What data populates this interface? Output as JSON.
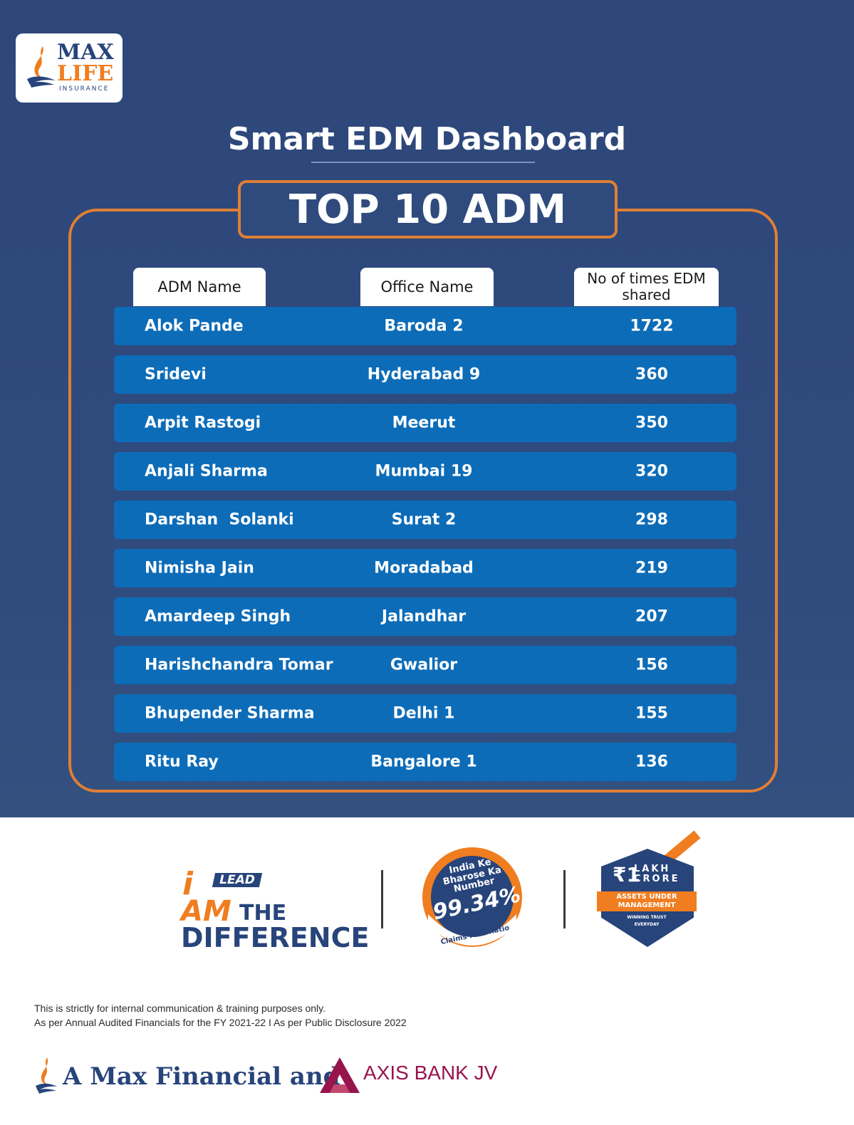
{
  "logo": {
    "line1": "MAX",
    "line2": "LIFE",
    "line3": "INSURANCE"
  },
  "title": "Smart EDM Dashboard",
  "badge": "TOP 10 ADM",
  "table": {
    "headers": [
      "ADM Name",
      "Office Name",
      "No of times EDM shared"
    ],
    "rows": [
      {
        "name": "Alok Pande",
        "office": "Baroda 2",
        "count": "1722"
      },
      {
        "name": "Sridevi",
        "office": "Hyderabad 9",
        "count": "360"
      },
      {
        "name": "Arpit Rastogi",
        "office": "Meerut",
        "count": "350"
      },
      {
        "name": "Anjali Sharma",
        "office": "Mumbai 19",
        "count": "320"
      },
      {
        "name": "Darshan  Solanki",
        "office": "Surat 2",
        "count": "298"
      },
      {
        "name": "Nimisha Jain",
        "office": "Moradabad",
        "count": "219"
      },
      {
        "name": "Amardeep Singh",
        "office": "Jalandhar",
        "count": "207"
      },
      {
        "name": "Harishchandra Tomar",
        "office": "Gwalior",
        "count": "156"
      },
      {
        "name": "Bhupender Sharma",
        "office": "Delhi 1",
        "count": "155"
      },
      {
        "name": "Ritu Ray",
        "office": "Bangalore 1",
        "count": "136"
      }
    ]
  },
  "badges": {
    "ilead": {
      "i": "i",
      "lead": "LEAD",
      "am": "AM",
      "the": "THE",
      "difference": "DIFFERENCE"
    },
    "claims": {
      "line1": "India Ke Bharose Ka Number",
      "value": "99.34%",
      "label": "Claims Paid Ratio"
    },
    "aum": {
      "symbol": "₹",
      "number": "1",
      "lakh": "LAKH",
      "crore": "CRORE",
      "band": "ASSETS UNDER MANAGEMENT",
      "tag1": "WINNING TRUST",
      "tag2": "EVERYDAY"
    }
  },
  "disclaimer": {
    "line1": "This is strictly for internal communication & training purposes only.",
    "line2": "As per Annual Audited Financials for the FY 2021-22 I As per Public Disclosure 2022"
  },
  "footer": {
    "jv": "A Max Financial and",
    "axis": "AXIS BANK JV"
  },
  "colors": {
    "navy": "#2f4a7d",
    "orange": "#e07f35",
    "row_blue": "#0c6cb8",
    "axis_maroon": "#97144d"
  }
}
